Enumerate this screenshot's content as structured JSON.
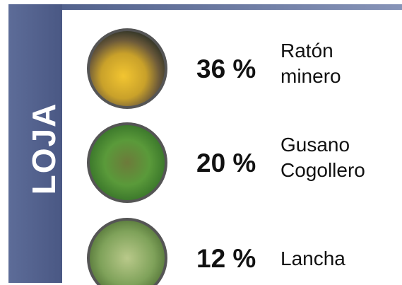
{
  "region": "LOJA",
  "items": [
    {
      "percent": "36 %",
      "name": [
        "Ratón",
        "minero"
      ]
    },
    {
      "percent": "20 %",
      "name": [
        "Gusano",
        "Cogollero"
      ]
    },
    {
      "percent": "12 %",
      "name": [
        "Lancha"
      ]
    }
  ]
}
